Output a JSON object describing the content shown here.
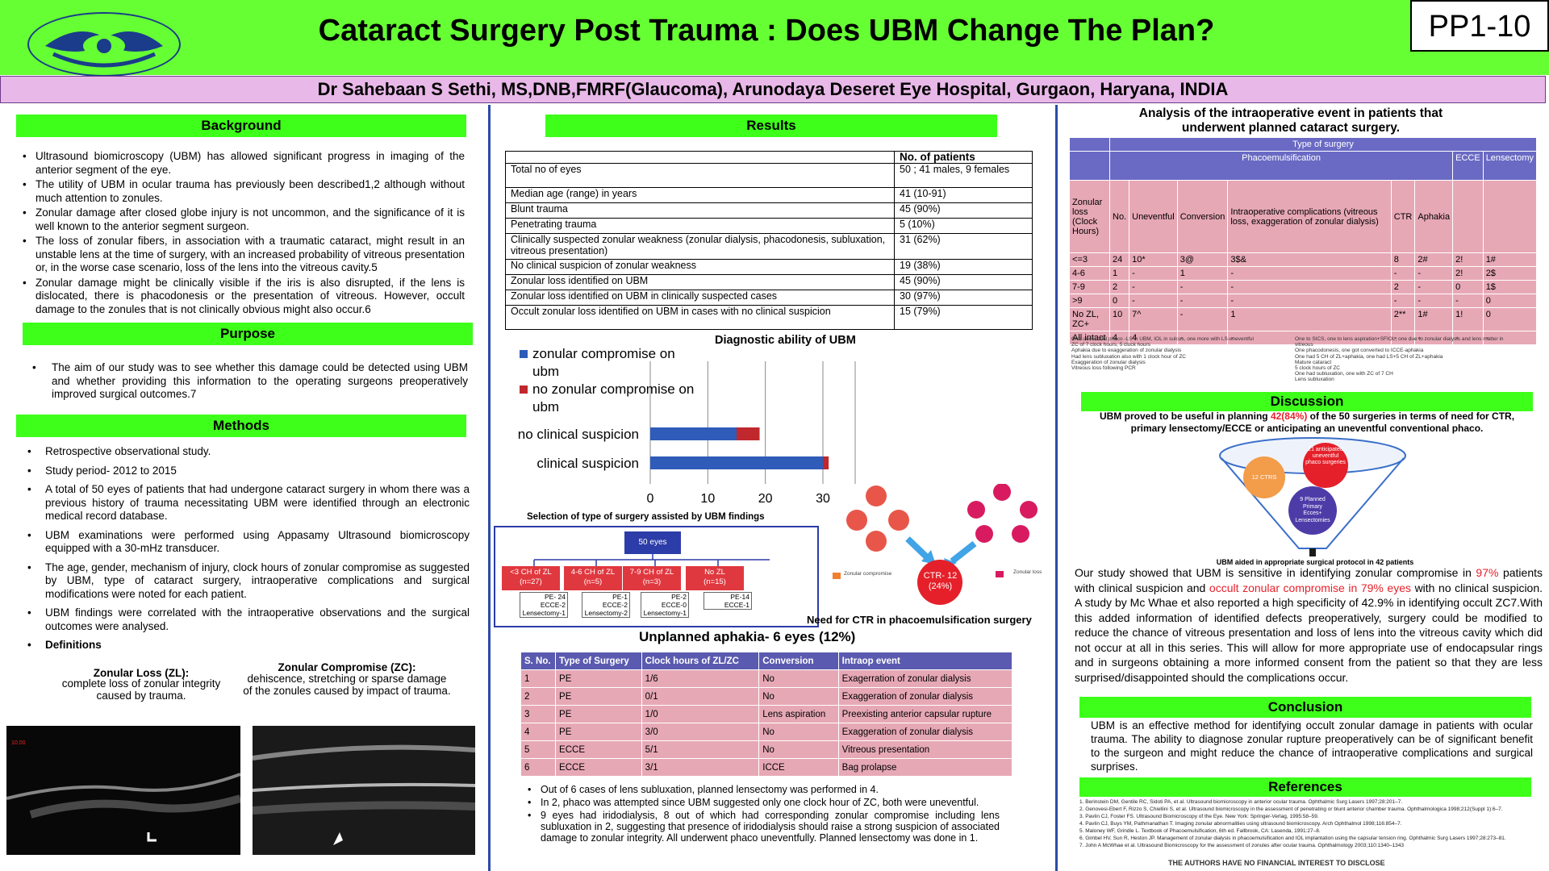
{
  "header": {
    "title": "Cataract Surgery Post Trauma : Does UBM Change The Plan?",
    "code": "PP1-10",
    "author": "Dr Sahebaan S Sethi, MS,DNB,FMRF(Glaucoma), Arunodaya Deseret Eye Hospital, Gurgaon, Haryana, INDIA"
  },
  "background": {
    "heading": "Background",
    "items": [
      "Ultrasound biomicroscopy (UBM) has allowed significant progress in imaging of the anterior segment of the eye.",
      "The utility of UBM in ocular trauma has previously been described1,2 although without much attention to zonules.",
      "Zonular damage after closed globe injury is not uncommon, and the significance of it is well known to the anterior segment surgeon.",
      "The loss of zonular fibers, in association with a traumatic cataract, might result in an unstable lens at the time of surgery, with an increased probability of vitreous presentation or, in the worse case scenario, loss of the lens into the vitreous cavity.5",
      "Zonular damage might be clinically visible if the iris is also disrupted, if the lens is dislocated, there is phacodonesis or the presentation of vitreous. However, occult damage to the zonules that is not clinically obvious might also occur.6"
    ]
  },
  "purpose": {
    "heading": "Purpose",
    "items": [
      "The aim of our study was to see whether this damage could be detected using UBM and whether providing this information to the operating surgeons preoperatively improved surgical outcomes.7"
    ]
  },
  "methods": {
    "heading": "Methods",
    "items": [
      "Retrospective observational study.",
      "Study period- 2012 to 2015",
      "A total of 50 eyes of patients that had undergone cataract surgery in whom there was a previous history of trauma necessitating UBM were identified through an electronic medical record database.",
      "UBM examinations were performed using Appasamy Ultrasound biomicroscopy equipped with a 30-mHz transducer.",
      "The age, gender, mechanism of injury, clock hours of zonular compromise as suggested by UBM, type of cataract surgery, intraoperative complications and surgical modifications were noted for each patient.",
      "UBM findings were correlated with the intraoperative observations and the surgical outcomes were analysed.",
      "Definitions"
    ],
    "def_zl_title": "Zonular Loss (ZL):",
    "def_zl_text": "complete loss of zonular integrity caused by trauma.",
    "def_zc_title": "Zonular Compromise (ZC):",
    "def_zc_text": "dehiscence, stretching or sparse damage of the zonules caused by impact of trauma.",
    "img_label": "10.00"
  },
  "results": {
    "heading": "Results",
    "col_header": "No. of patients",
    "rows": [
      [
        "Total no of eyes",
        "50 ; 41 males, 9 females"
      ],
      [
        "Median age (range) in years",
        "41 (10-91)"
      ],
      [
        "Blunt trauma",
        "45 (90%)"
      ],
      [
        "Penetrating trauma",
        "5 (10%)"
      ],
      [
        "Clinically suspected zonular weakness (zonular dialysis, phacodonesis, subluxation, vitreous presentation)",
        "31 (62%)"
      ],
      [
        "No clinical suspicion of zonular weakness",
        "19 (38%)"
      ],
      [
        "Zonular loss identified on UBM",
        "45 (90%)"
      ],
      [
        "Zonular loss identified on UBM in clinically suspected cases",
        "30 (97%)"
      ],
      [
        "Occult zonular loss identified on UBM in cases with no clinical suspicion",
        "15 (79%)"
      ]
    ]
  },
  "chart_data": {
    "type": "bar",
    "orientation": "horizontal",
    "stacked": true,
    "title": "Diagnostic ability of UBM",
    "categories": [
      "no clinical suspicion",
      "clinical suspicion"
    ],
    "series": [
      {
        "name": "zonular compromise on ubm",
        "color": "#2e5cb8",
        "values": [
          15,
          30
        ]
      },
      {
        "name": "no zonular compromise on ubm",
        "color": "#c0282d",
        "values": [
          4,
          1
        ]
      }
    ],
    "xlim": [
      0,
      30
    ],
    "xticks": [
      "0",
      "10",
      "20",
      "30"
    ],
    "legend": "top-left",
    "grid": true
  },
  "flow": {
    "title": "Selection of type of surgery assisted by UBM findings",
    "root": "50 eyes",
    "nodes": [
      {
        "label": "<3 CH of ZL",
        "n": "(n=27)",
        "sub": [
          "PE- 24",
          "ECCE-2",
          "Lensectomy-1"
        ]
      },
      {
        "label": "4-6 CH of ZL",
        "n": "(n=5)",
        "sub": [
          "PE-1",
          "ECCE-2",
          "Lensectomy-2"
        ]
      },
      {
        "label": "7-9 CH of ZL",
        "n": "(n=3)",
        "sub": [
          "PE-2",
          "ECCE-0",
          "Lensectomy-1"
        ]
      },
      {
        "label": "No ZL",
        "n": "(n=15)",
        "sub": [
          "PE-14",
          "ECCE-1"
        ]
      }
    ]
  },
  "ctr": {
    "label": "CTR- 12",
    "pct": "(24%)",
    "legend1": "Zonular compromise",
    "legend2": "Zonular loss",
    "caption": "Need for CTR in phacoemulsification surgery"
  },
  "aphakia": {
    "title": "Unplanned aphakia- 6 eyes (12%)",
    "headers": [
      "S. No.",
      "Type of Surgery",
      "Clock hours of ZL/ZC",
      "Conversion",
      "Intraop event"
    ],
    "rows": [
      [
        "1",
        "PE",
        "1/6",
        "No",
        "Exagerration of zonular dialysis"
      ],
      [
        "2",
        "PE",
        "0/1",
        "No",
        "Exaggeration of zonular dialysis"
      ],
      [
        "3",
        "PE",
        "1/0",
        "Lens aspiration",
        "Preexisting anterior capsular rupture"
      ],
      [
        "4",
        "PE",
        "3/0",
        "No",
        "Exaggeration of zonular dialysis"
      ],
      [
        "5",
        "ECCE",
        "5/1",
        "No",
        "Vitreous presentation"
      ],
      [
        "6",
        "ECCE",
        "3/1",
        "ICCE",
        "Bag prolapse"
      ]
    ],
    "notes": [
      "Out of 6 cases of lens subluxation, planned lensectomy was performed in 4.",
      "In 2, phaco was attempted since UBM suggested only one clock hour of ZC, both were uneventful.",
      "9 eyes had iridodialysis, 8 out of which had corresponding zonular compromise including lens subluxation in 2, suggesting that presence of iridodialysis should raise a strong suspicion of associated damage to zonular integrity. All underwent phaco uneventfully. Planned lensectomy was done in 1."
    ]
  },
  "analysis": {
    "title": "Analysis of the intraoperative event in patients that underwent planned cataract surgery.",
    "type_header": "Type of surgery",
    "phaco": "Phacoemulsification",
    "ecce": "ECCE",
    "lens": "Lensectomy",
    "col_heads": [
      "Zonular loss (Clock Hours)",
      "No.",
      "Uneventful",
      "Conversion",
      "Intraoperative complications (vitreous loss, exaggeration of zonular dialysis)",
      "CTR",
      "Aphakia"
    ],
    "rows": [
      [
        "<=3",
        "24",
        "10*",
        "3@",
        "3$&",
        "8",
        "2#",
        "2!",
        "1#"
      ],
      [
        "4-6",
        "1",
        "-",
        "1",
        "-",
        "-",
        "-",
        "2!",
        "2$"
      ],
      [
        "7-9",
        "2",
        "-",
        "-",
        "-",
        "2",
        "-",
        "0",
        "1$"
      ],
      [
        ">9",
        "0",
        "-",
        "-",
        "-",
        "-",
        "-",
        "-",
        "0"
      ],
      [
        "No ZL, ZC+",
        "10",
        "7^",
        "-",
        "1",
        "2**",
        "1#",
        "1!",
        "0"
      ],
      [
        "All intact",
        "4",
        "4",
        "-",
        "-",
        "-",
        "-",
        "-",
        "-"
      ]
    ],
    "footnotes_left": [
      "One uneventful phaco -LS in UBM, IOL in sulcus, one more with LS-uneventful",
      "ZC of 7 clock hours, 5 clock hours",
      "Aphakia due to exaggeration of zonular dialysis",
      "Had lens subluxation also with 1 clock hour of ZC",
      "Exaggeration of zonular dialysis",
      "Vitreous loss following PCR"
    ],
    "footnotes_right": [
      "One to SICS, one to lens aspiration+SFIOL, one due to zonular dialysis and lens matter in vitreous",
      "One phacodonesis, one got converted to ICCE-aphakia",
      "One had 5 CH of ZL+aphakia, one had LS+5 CH of ZL+aphakia",
      "Mature cataract",
      "5 clock hours of ZC",
      "One had subluxation, one with ZC of 7 CH",
      "Lens subluxation"
    ]
  },
  "discussion": {
    "heading": "Discussion",
    "lead_a": "UBM proved to be useful in planning ",
    "lead_pct": "42(84%)",
    "lead_b": " of the 50 surgeries in terms of need for CTR, primary lensectomy/ECCE or anticipating an uneventful conventional phaco.",
    "funnel_top": "21 anticipated uneventful phaco surgeries",
    "funnel_left": "12 CTRS",
    "funnel_bottom": "9 Planned Primary Ecces+ Lensectomies",
    "funnel_caption": "UBM aided in appropriate surgical protocol in 42 patients",
    "p1": "Our study showed that UBM is sensitive in identifying zonular compromise in ",
    "p1_pct": "97%",
    "p2": " patients with clinical suspicion and ",
    "p2_red": "occult zonular compromise in 79% eyes",
    "p3": " with no clinical suspicion. A study by Mc Whae et also reported a high specificity of 42.9% in identifying occult ZC7.With this added information of identified defects preoperatively, surgery could be modified to reduce the chance of vitreous presentation and loss of lens into the vitreous cavity which did not occur at all in this series. This will allow for more appropriate use of endocapsular rings and in surgeons obtaining a more informed consent from the patient so that they are less surprised/disappointed should the complications occur."
  },
  "conclusion": {
    "heading": "Conclusion",
    "text": "UBM is an effective method for identifying occult zonular damage in patients with ocular trauma. The ability to diagnose zonular rupture preoperatively can be of significant benefit to the surgeon and might reduce the chance of intraoperative complications and surgical surprises."
  },
  "references": {
    "heading": "References",
    "items": [
      "1.  Berinstein DM, Gentile RC, Sidoti PA, et al. Ultrasound biomicroscopy in anterior ocular trauma. Ophthalmic Surg Lasers 1997;28:201–7.",
      "2.  Genovesi-Ebert F, Rizzo S, Chiellini S, et al. Ultrasound biomicroscopy in the assessment of penetrating or blunt anterior chamber trauma. Ophthalmologica 1998;212(Suppl 1):6–7.",
      "3.  Pavlin CJ, Foster FS. Ultrasound Biomicroscopy of the Eye. New York: Springer-Verlag, 1995:58–59.",
      "4.  Pavlin CJ, Buys YM, Pathmanathan T. Imaging zonular abnormalities using ultrasound biomicroscopy. Arch Ophthalmol 1998;116:854–7.",
      "5.  Maloney WF, Grindle L. Textbook of Phacoemulsification, 6th ed. Fallbrook, CA: Lasenda, 1991:27–8.",
      "6.  Gimbel HV, Sun R, Heston JP. Management of zonular dialysis in phacoemulsification and IOL implantation using the capsular tension ring. Ophthalmic Surg Lasers 1997;28:273–81.",
      "7.  John A McWhae et al. Ultrasound Biomicroscopy for the assessment of zonules after ocular trauma. Ophthalmology 2003;110:1340–1343"
    ],
    "disclaimer": "THE AUTHORS HAVE NO FINANCIAL INTEREST TO DISCLOSE"
  }
}
